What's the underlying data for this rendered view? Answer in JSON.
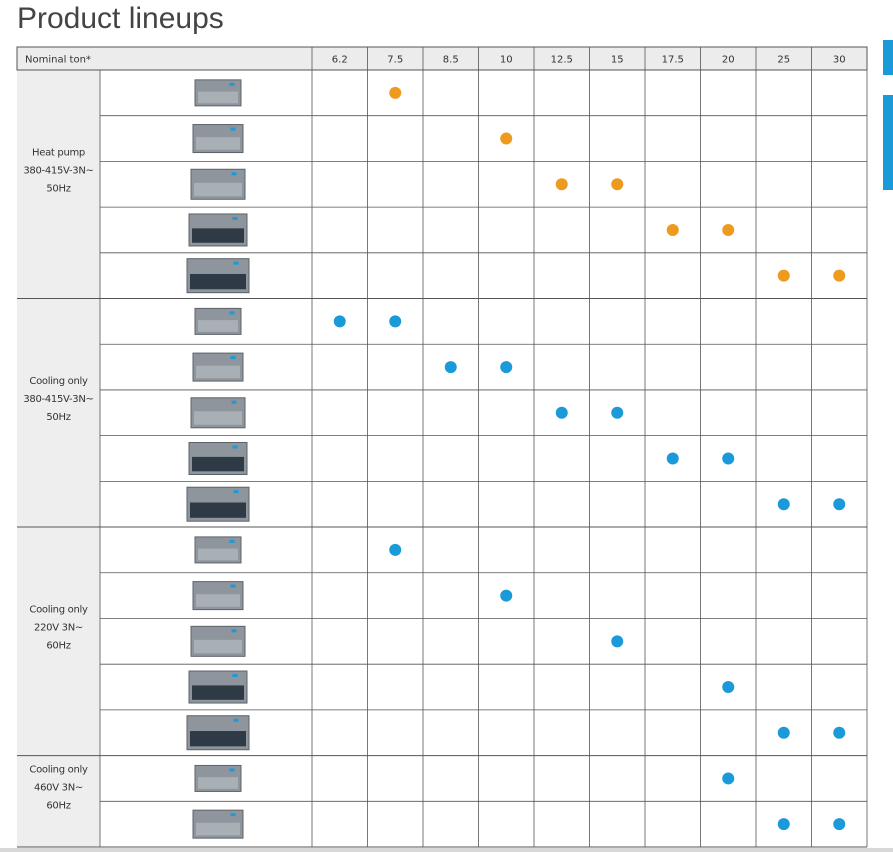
{
  "title": "Product lineups",
  "table": {
    "header_label": "Nominal ton*",
    "tons": [
      6.2,
      7.5,
      8.5,
      10,
      12.5,
      15,
      17.5,
      20,
      25,
      30
    ],
    "groups": [
      {
        "label_lines": [
          "Heat pump",
          "380-415V-3N~",
          "50Hz"
        ],
        "color": "#ee9a1f",
        "rows": [
          {
            "tons": [
              7.5
            ]
          },
          {
            "tons": [
              10
            ]
          },
          {
            "tons": [
              12.5,
              15
            ]
          },
          {
            "tons": [
              17.5,
              20
            ]
          },
          {
            "tons": [
              25,
              30
            ]
          }
        ]
      },
      {
        "label_lines": [
          "Cooling only",
          "380-415V-3N~",
          "50Hz"
        ],
        "color": "#1a9ad8",
        "rows": [
          {
            "tons": [
              6.2,
              7.5
            ]
          },
          {
            "tons": [
              8.5,
              10
            ]
          },
          {
            "tons": [
              12.5,
              15
            ]
          },
          {
            "tons": [
              17.5,
              20
            ]
          },
          {
            "tons": [
              25,
              30
            ]
          }
        ]
      },
      {
        "label_lines": [
          "Cooling only",
          "220V 3N~",
          "60Hz"
        ],
        "color": "#1a9ad8",
        "rows": [
          {
            "tons": [
              7.5
            ]
          },
          {
            "tons": [
              10
            ]
          },
          {
            "tons": [
              15
            ]
          },
          {
            "tons": [
              20
            ]
          },
          {
            "tons": [
              25,
              30
            ]
          }
        ]
      },
      {
        "label_lines": [
          "Cooling only",
          "460V 3N~",
          "60Hz"
        ],
        "color": "#1a9ad8",
        "rows": [
          {
            "tons": [
              20
            ]
          },
          {
            "tons": [
              25,
              30
            ]
          }
        ]
      }
    ]
  }
}
